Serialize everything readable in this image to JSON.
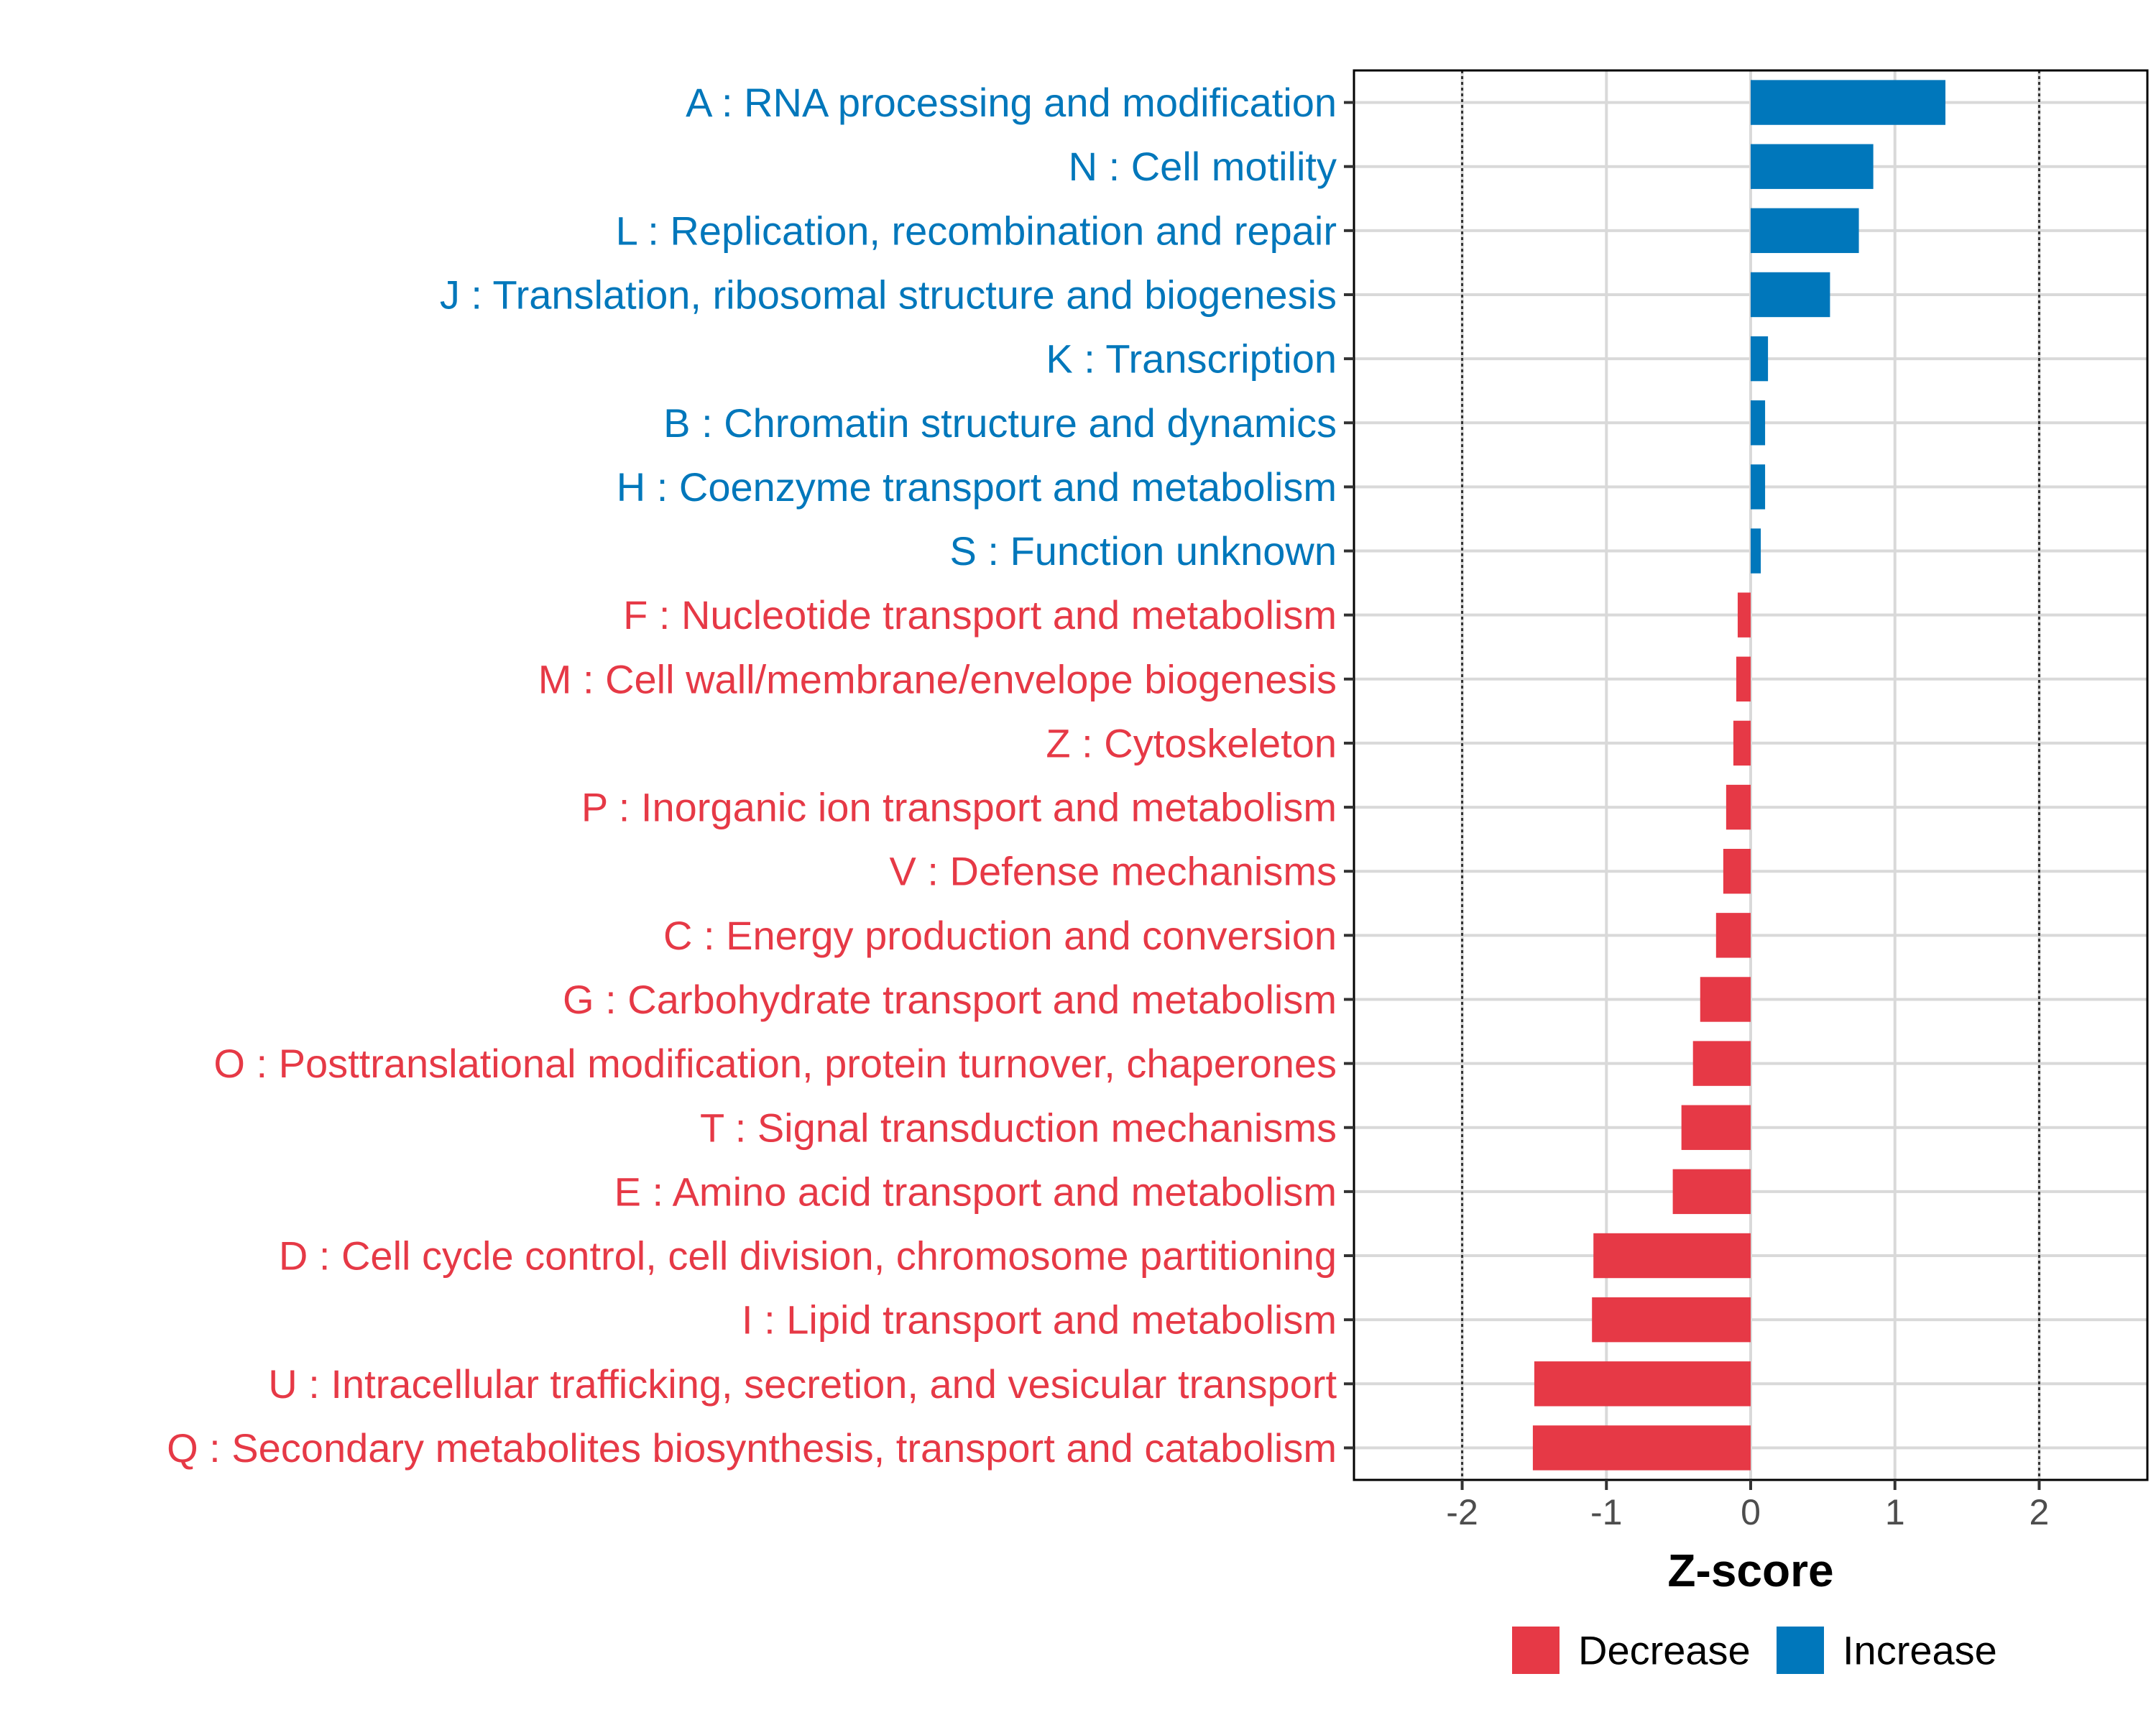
{
  "chart_data": {
    "type": "bar",
    "orientation": "horizontal",
    "title": "",
    "xlabel": "Z-score",
    "ylabel": "",
    "xlim": [
      -2.75,
      2.75
    ],
    "xticks": [
      -2,
      -1,
      0,
      1,
      2
    ],
    "xtick_labels": [
      "-2",
      "-1",
      "0",
      "1",
      "2"
    ],
    "reference_lines": [
      -2,
      2
    ],
    "grid": true,
    "legend_position": "bottom",
    "colors": {
      "Increase": "#0077bb",
      "Decrease": "#e63946"
    },
    "legend": [
      {
        "label": "Decrease",
        "color": "#e63946"
      },
      {
        "label": "Increase",
        "color": "#0077bb"
      }
    ],
    "categories": [
      "A : RNA processing and modification",
      "N : Cell motility",
      "L : Replication, recombination and repair",
      "J : Translation, ribosomal structure and biogenesis",
      "K : Transcription",
      "B : Chromatin structure and dynamics",
      "H : Coenzyme transport and metabolism",
      "S : Function unknown",
      "F : Nucleotide transport and metabolism",
      "M : Cell wall/membrane/envelope biogenesis",
      "Z : Cytoskeleton",
      "P : Inorganic ion transport and metabolism",
      "V : Defense mechanisms",
      "C : Energy production and conversion",
      "G : Carbohydrate transport and metabolism",
      "O : Posttranslational modification, protein turnover, chaperones",
      "T : Signal transduction mechanisms",
      "E : Amino acid transport and metabolism",
      "D : Cell cycle control, cell division, chromosome partitioning",
      "I : Lipid transport and metabolism",
      "U : Intracellular trafficking, secretion, and vesicular transport",
      "Q : Secondary metabolites biosynthesis, transport and catabolism"
    ],
    "values": [
      1.35,
      0.85,
      0.75,
      0.55,
      0.12,
      0.1,
      0.1,
      0.07,
      -0.09,
      -0.1,
      -0.12,
      -0.17,
      -0.19,
      -0.24,
      -0.35,
      -0.4,
      -0.48,
      -0.54,
      -1.09,
      -1.1,
      -1.5,
      -1.51
    ],
    "groups": [
      "Increase",
      "Increase",
      "Increase",
      "Increase",
      "Increase",
      "Increase",
      "Increase",
      "Increase",
      "Decrease",
      "Decrease",
      "Decrease",
      "Decrease",
      "Decrease",
      "Decrease",
      "Decrease",
      "Decrease",
      "Decrease",
      "Decrease",
      "Decrease",
      "Decrease",
      "Decrease",
      "Decrease"
    ]
  }
}
